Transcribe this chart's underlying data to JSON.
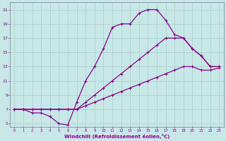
{
  "xlabel": "Windchill (Refroidissement éolien,°C)",
  "bg_color": "#c8e8e8",
  "grid_color": "#a8cccc",
  "line_color": "#880088",
  "xlim": [
    -0.5,
    23.5
  ],
  "ylim": [
    4.5,
    22.0
  ],
  "xticks": [
    0,
    1,
    2,
    3,
    4,
    5,
    6,
    7,
    8,
    9,
    10,
    11,
    12,
    13,
    14,
    15,
    16,
    17,
    18,
    19,
    20,
    21,
    22,
    23
  ],
  "yticks": [
    5,
    7,
    9,
    11,
    13,
    15,
    17,
    19,
    21
  ],
  "line1_x": [
    0,
    1,
    2,
    3,
    4,
    5,
    6,
    7,
    8,
    9,
    10,
    11,
    12,
    13,
    14,
    15,
    16,
    17,
    18,
    19,
    20,
    21,
    22,
    23
  ],
  "line1_y": [
    7,
    7,
    6.5,
    6.5,
    6,
    5,
    4.8,
    8,
    11,
    13,
    15.5,
    18.5,
    19,
    19,
    20.5,
    21,
    21,
    19.5,
    17.5,
    17,
    15.5,
    14.5,
    13,
    13
  ],
  "line2_x": [
    0,
    1,
    2,
    3,
    4,
    5,
    6,
    7,
    8,
    9,
    10,
    11,
    12,
    13,
    14,
    15,
    16,
    17,
    18,
    19,
    20,
    21,
    22,
    23
  ],
  "line2_y": [
    7,
    7,
    7,
    7,
    7,
    7,
    7,
    7,
    8,
    9,
    10,
    11,
    12,
    13,
    14,
    15,
    16,
    17,
    17,
    17,
    15.5,
    14.5,
    13,
    13
  ],
  "line3_x": [
    0,
    1,
    2,
    3,
    4,
    5,
    6,
    7,
    8,
    9,
    10,
    11,
    12,
    13,
    14,
    15,
    16,
    17,
    18,
    19,
    20,
    21,
    22,
    23
  ],
  "line3_y": [
    7,
    7,
    7,
    7,
    7,
    7,
    7,
    7,
    7.5,
    8,
    8.5,
    9,
    9.5,
    10,
    10.5,
    11,
    11.5,
    12,
    12.5,
    13,
    13,
    12.5,
    12.5,
    12.8
  ]
}
